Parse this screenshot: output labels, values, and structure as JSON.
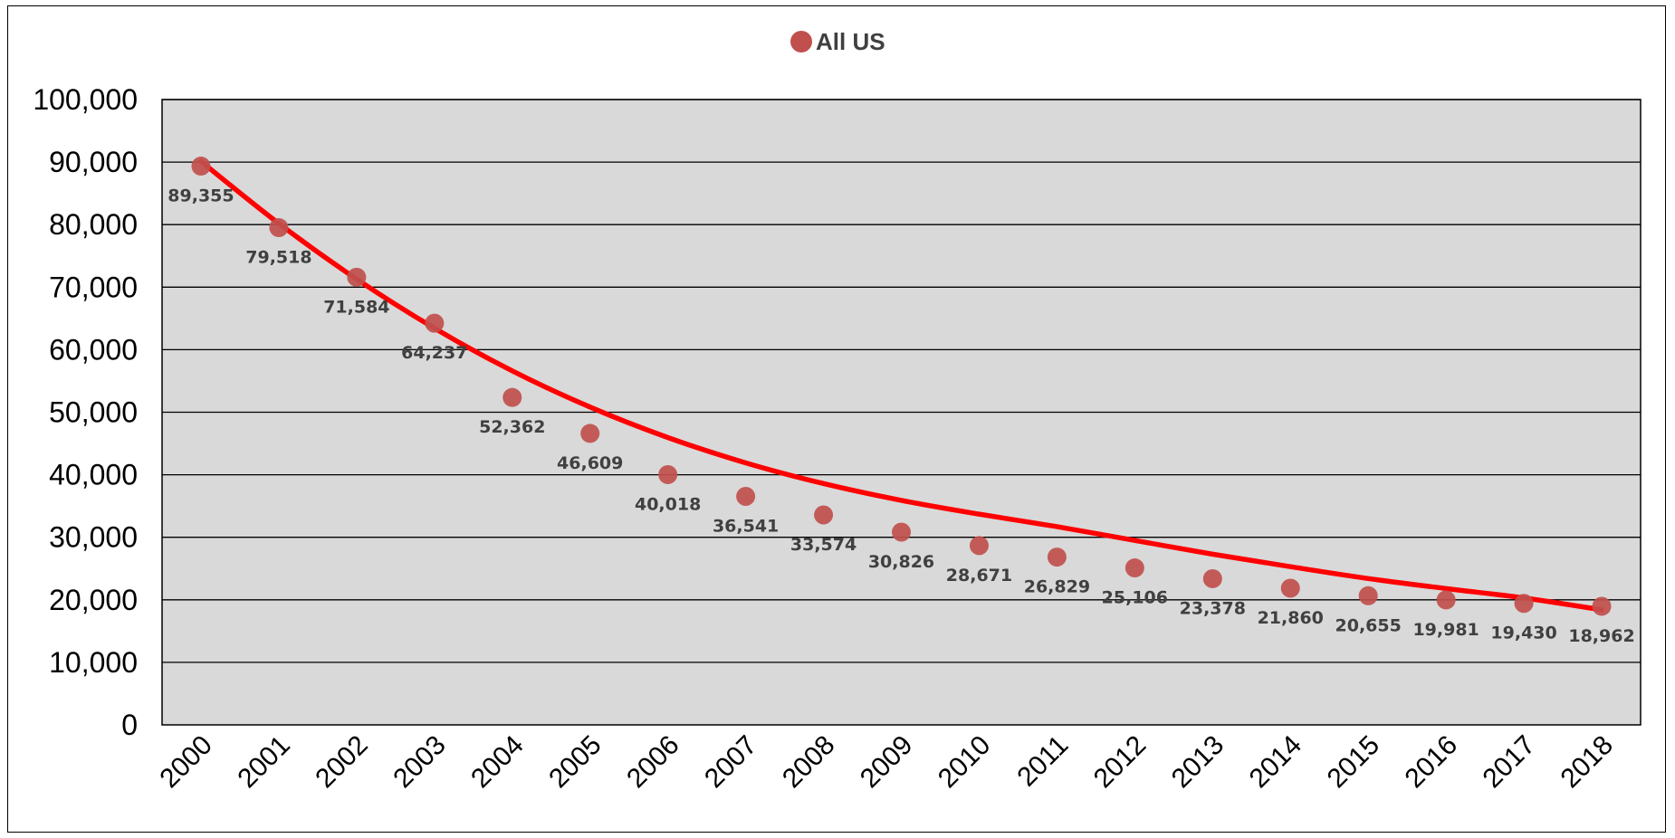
{
  "chart_data": {
    "type": "scatter",
    "title": "",
    "xlabel": "",
    "ylabel": "",
    "categories": [
      "2000",
      "2001",
      "2002",
      "2003",
      "2004",
      "2005",
      "2006",
      "2007",
      "2008",
      "2009",
      "2010",
      "2011",
      "2012",
      "2013",
      "2014",
      "2015",
      "2016",
      "2017",
      "2018"
    ],
    "series": [
      {
        "name": "All US",
        "values": [
          89355,
          79518,
          71584,
          64237,
          52362,
          46609,
          40018,
          36541,
          33574,
          30826,
          28671,
          26829,
          25106,
          23378,
          21860,
          20655,
          19981,
          19430,
          18962
        ],
        "labels": [
          "89,355",
          "79,518",
          "71,584",
          "64,237",
          "52,362",
          "46,609",
          "40,018",
          "36,541",
          "33,574",
          "30,826",
          "28,671",
          "26,829",
          "25,106",
          "23,378",
          "21,860",
          "20,655",
          "19,981",
          "19,430",
          "18,962"
        ],
        "color": "#C0504D"
      }
    ],
    "trendline": {
      "type": "polynomial",
      "color": "#FF0000",
      "values": [
        90100,
        80178,
        71288,
        63433,
        56611,
        50822,
        45951,
        41900,
        38588,
        35900,
        33700,
        31700,
        29500,
        27300,
        25300,
        23400,
        21800,
        20300,
        18400
      ]
    },
    "ylim": [
      0,
      100000
    ],
    "yticks": [
      0,
      10000,
      20000,
      30000,
      40000,
      50000,
      60000,
      70000,
      80000,
      90000,
      100000
    ],
    "ytick_labels": [
      "0",
      "10,000",
      "20,000",
      "30,000",
      "40,000",
      "50,000",
      "60,000",
      "70,000",
      "80,000",
      "90,000",
      "100,000"
    ],
    "grid": true,
    "legend_position": "top-center",
    "plot_background": "#D9D9D9"
  }
}
